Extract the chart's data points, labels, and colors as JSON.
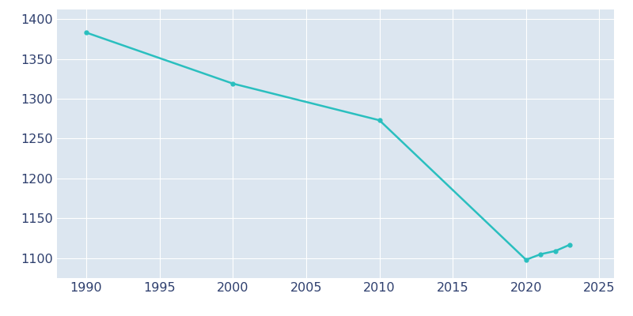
{
  "years": [
    1990,
    2000,
    2010,
    2020,
    2021,
    2022,
    2023
  ],
  "population": [
    1383,
    1319,
    1273,
    1098,
    1105,
    1109,
    1117
  ],
  "line_color": "#2abfbf",
  "marker": "o",
  "marker_size": 3.5,
  "line_width": 1.8,
  "bg_color": "#dce6f0",
  "fig_bg_color": "#ffffff",
  "grid_color": "#ffffff",
  "tick_color": "#2e3f6e",
  "xlim": [
    1988,
    2026
  ],
  "ylim": [
    1075,
    1412
  ],
  "yticks": [
    1100,
    1150,
    1200,
    1250,
    1300,
    1350,
    1400
  ],
  "xticks": [
    1990,
    1995,
    2000,
    2005,
    2010,
    2015,
    2020,
    2025
  ],
  "tick_fontsize": 11.5
}
